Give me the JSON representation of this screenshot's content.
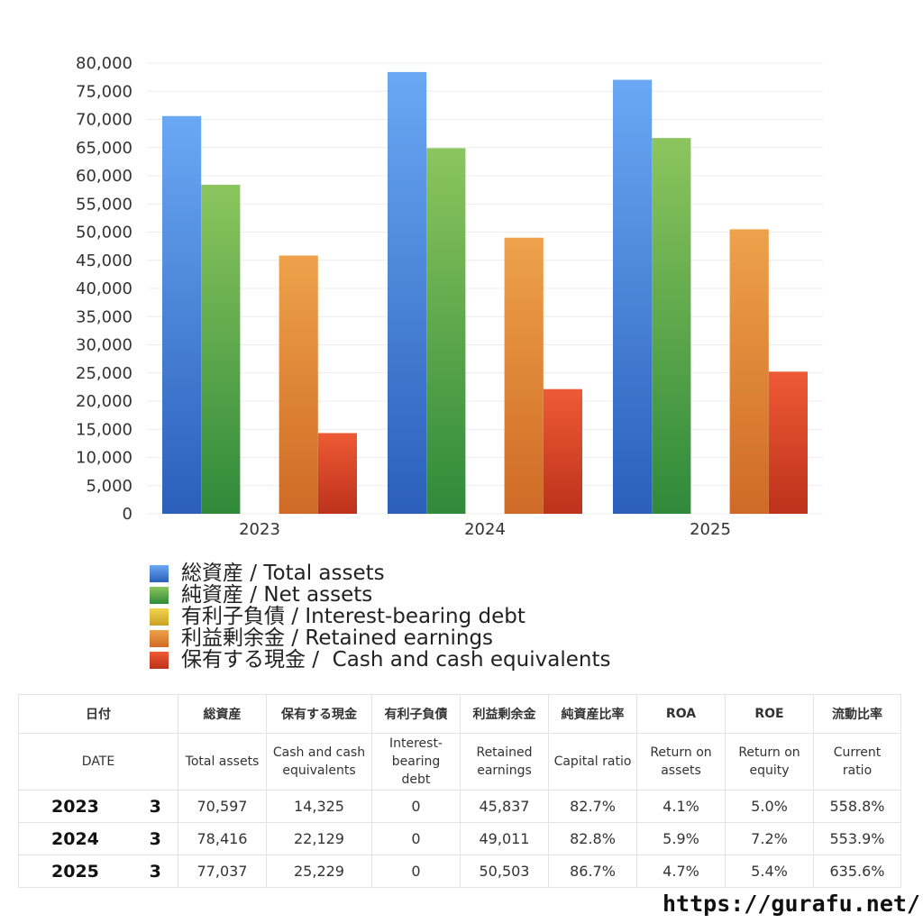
{
  "chart_data": {
    "type": "bar",
    "categories": [
      "2023",
      "2024",
      "2025"
    ],
    "ylim": [
      0,
      80000
    ],
    "yticks": [
      0,
      5000,
      10000,
      15000,
      20000,
      25000,
      30000,
      35000,
      40000,
      45000,
      50000,
      55000,
      60000,
      65000,
      70000,
      75000,
      80000
    ],
    "ytick_labels": [
      "0",
      "5,000",
      "10,000",
      "15,000",
      "20,000",
      "25,000",
      "30,000",
      "35,000",
      "40,000",
      "45,000",
      "50,000",
      "55,000",
      "60,000",
      "65,000",
      "70,000",
      "75,000",
      "80,000"
    ],
    "grid": true,
    "legend_position": "bottom",
    "series": [
      {
        "name": "総資産 / Total assets",
        "values": [
          70597,
          78416,
          77037
        ],
        "color_top": "#6aa8f4",
        "color_bottom": "#2b5fba"
      },
      {
        "name": "純資産 / Net assets",
        "values": [
          58400,
          64900,
          66700
        ],
        "color_top": "#8cc55e",
        "color_bottom": "#2f8a3a"
      },
      {
        "name": "有利子負債 / Interest-bearing debt",
        "values": [
          0,
          0,
          0
        ],
        "color_top": "#f2d44a",
        "color_bottom": "#c9a22a"
      },
      {
        "name": "利益剰余金 / Retained earnings",
        "values": [
          45837,
          49011,
          50503
        ],
        "color_top": "#eea24a",
        "color_bottom": "#cf6a26"
      },
      {
        "name": "保有する現金 /  Cash and cash equivalents",
        "values": [
          14325,
          22129,
          25229
        ],
        "color_top": "#ee5a35",
        "color_bottom": "#bd321c"
      }
    ]
  },
  "table": {
    "header_jp": [
      "日付",
      "総資産",
      "保有する現金",
      "有利子負債",
      "利益剰余金",
      "純資産比率",
      "ROA",
      "ROE",
      "流動比率"
    ],
    "header_en": [
      {
        "l1": "DATE",
        "l2": "",
        "l3": ""
      },
      {
        "l1": "Total assets",
        "l2": "",
        "l3": ""
      },
      {
        "l1": "Cash and cash",
        "l2": "equivalents",
        "l3": ""
      },
      {
        "l1": "Interest-",
        "l2": "bearing",
        "l3": "debt"
      },
      {
        "l1": "Retained",
        "l2": "earnings",
        "l3": ""
      },
      {
        "l1": "Capital ratio",
        "l2": "",
        "l3": ""
      },
      {
        "l1": "Return on",
        "l2": "assets",
        "l3": ""
      },
      {
        "l1": "Return on",
        "l2": "equity",
        "l3": ""
      },
      {
        "l1": "Current",
        "l2": "ratio",
        "l3": ""
      }
    ],
    "rows": [
      [
        "2023",
        "3",
        "70,597",
        "14,325",
        "0",
        "45,837",
        "82.7%",
        "4.1%",
        "5.0%",
        "558.8%"
      ],
      [
        "2024",
        "3",
        "78,416",
        "22,129",
        "0",
        "49,011",
        "82.8%",
        "5.9%",
        "7.2%",
        "553.9%"
      ],
      [
        "2025",
        "3",
        "77,037",
        "25,229",
        "0",
        "50,503",
        "86.7%",
        "4.7%",
        "5.4%",
        "635.6%"
      ]
    ]
  },
  "footer": {
    "url": "https://gurafu.net/"
  }
}
